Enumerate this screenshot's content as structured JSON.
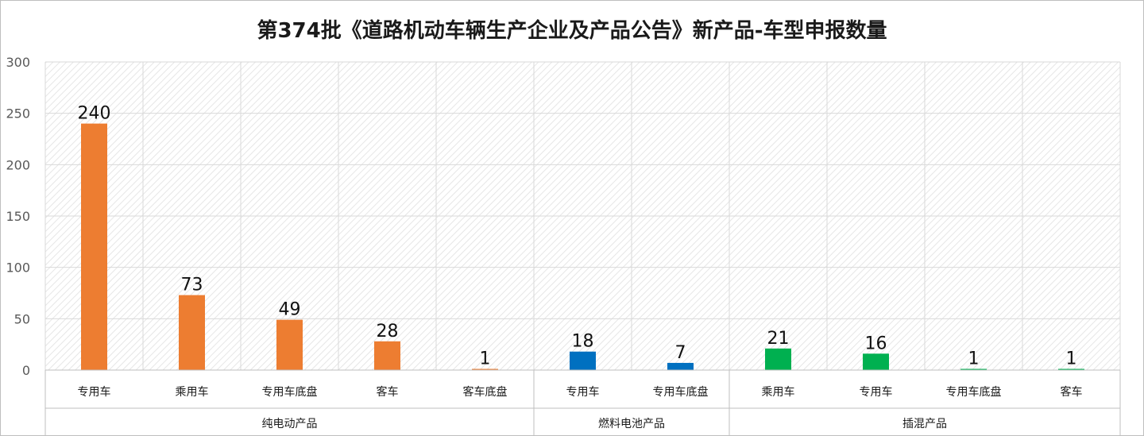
{
  "chart_data": {
    "type": "bar",
    "title": "第374批《道路机动车辆生产企业及产品公告》新产品-车型申报数量",
    "xlabel": "",
    "ylabel": "",
    "ylim": [
      0,
      300
    ],
    "yticks": [
      0,
      50,
      100,
      150,
      200,
      250,
      300
    ],
    "grid": true,
    "legend": "none",
    "groups": [
      {
        "name": "纯电动产品",
        "color": "#ED7D31",
        "categories": [
          "专用车",
          "乘用车",
          "专用车底盘",
          "客车",
          "客车底盘"
        ],
        "values": [
          240,
          73,
          49,
          28,
          1
        ]
      },
      {
        "name": "燃料电池产品",
        "color": "#0070C0",
        "categories": [
          "专用车",
          "专用车底盘"
        ],
        "values": [
          18,
          7
        ]
      },
      {
        "name": "插混产品",
        "color": "#00B050",
        "categories": [
          "乘用车",
          "专用车",
          "专用车底盘",
          "客车"
        ],
        "values": [
          21,
          16,
          1,
          1
        ]
      }
    ]
  }
}
